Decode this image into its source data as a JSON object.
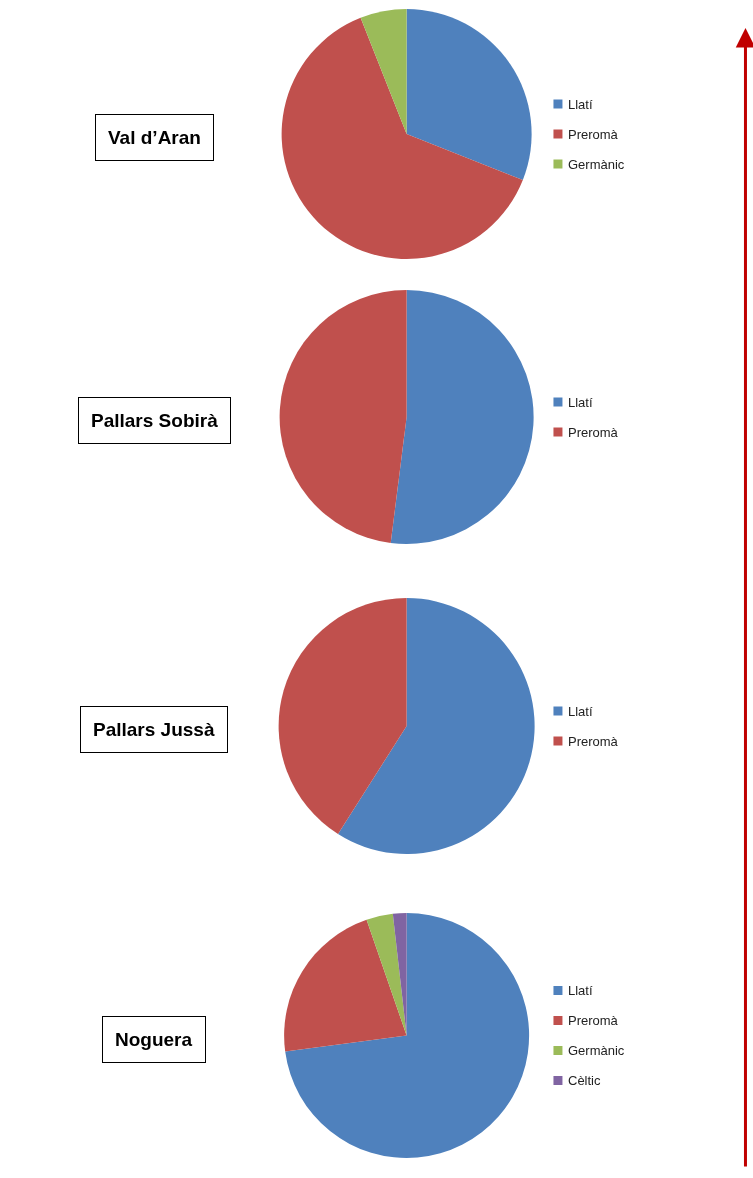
{
  "chart_data": [
    {
      "type": "pie",
      "title": "Val d’Aran",
      "categories": [
        "Llatí",
        "Preromà",
        "Germànic"
      ],
      "values": [
        31,
        63,
        6
      ],
      "colors": [
        "#4f81bd",
        "#c0504d",
        "#9bbb59"
      ],
      "legend": "right"
    },
    {
      "type": "pie",
      "title": "Pallars Sobirà",
      "categories": [
        "Llatí",
        "Preromà"
      ],
      "values": [
        52,
        48
      ],
      "colors": [
        "#4f81bd",
        "#c0504d"
      ],
      "legend": "right"
    },
    {
      "type": "pie",
      "title": "Pallars Jussà",
      "categories": [
        "Llatí",
        "Preromà"
      ],
      "values": [
        59,
        41
      ],
      "colors": [
        "#4f81bd",
        "#c0504d"
      ],
      "legend": "right"
    },
    {
      "type": "pie",
      "title": "Noguera",
      "categories": [
        "Llatí",
        "Preromà",
        "Germànic",
        "Cèltic"
      ],
      "values": [
        72.9,
        21.8,
        3.5,
        1.8
      ],
      "colors": [
        "#4f81bd",
        "#c0504d",
        "#9bbb59",
        "#8064a2"
      ],
      "legend": "right"
    }
  ]
}
